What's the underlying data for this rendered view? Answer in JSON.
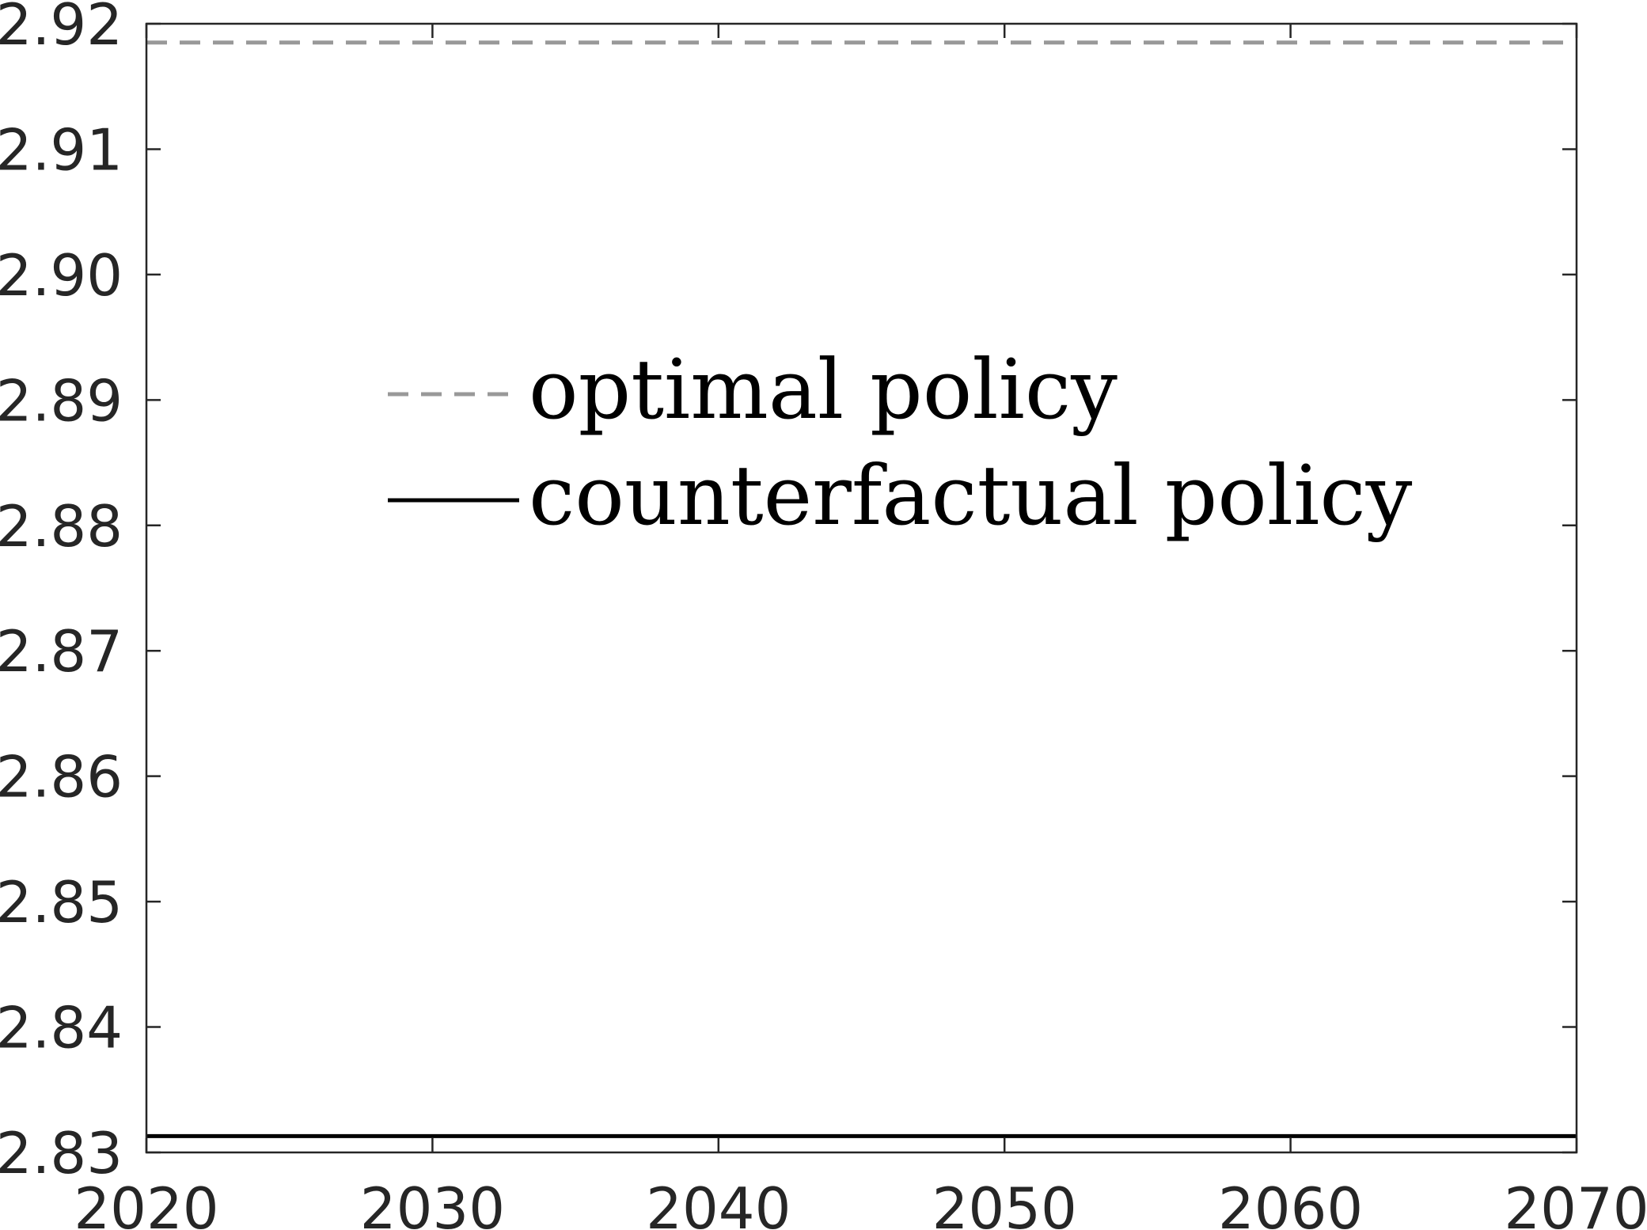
{
  "chart_data": {
    "type": "line",
    "title": "",
    "xlabel": "",
    "ylabel": "",
    "xlim": [
      2020,
      2070
    ],
    "ylim": [
      2.83,
      2.92
    ],
    "xticks": [
      2020,
      2030,
      2040,
      2050,
      2060,
      2070
    ],
    "xtick_labels": [
      "2020",
      "2030",
      "2040",
      "2050",
      "2060",
      "2070"
    ],
    "yticks": [
      2.83,
      2.84,
      2.85,
      2.86,
      2.87,
      2.88,
      2.89,
      2.9,
      2.91,
      2.92
    ],
    "ytick_labels": [
      "2.83",
      "2.84",
      "2.85",
      "2.86",
      "2.87",
      "2.88",
      "2.89",
      "2.90",
      "2.91",
      "2.92"
    ],
    "grid": false,
    "legend_position": "upper-left",
    "series": [
      {
        "name": "optimal policy",
        "line_style": "dashed",
        "color": "#999999",
        "x": [
          2020,
          2030,
          2040,
          2050,
          2060,
          2070
        ],
        "y": [
          2.9185,
          2.9185,
          2.9185,
          2.9185,
          2.9185,
          2.9185
        ]
      },
      {
        "name": "counterfactual policy",
        "line_style": "solid",
        "color": "#000000",
        "x": [
          2020,
          2030,
          2040,
          2050,
          2060,
          2070
        ],
        "y": [
          2.8313,
          2.8313,
          2.8313,
          2.8313,
          2.8313,
          2.8313
        ]
      }
    ]
  }
}
